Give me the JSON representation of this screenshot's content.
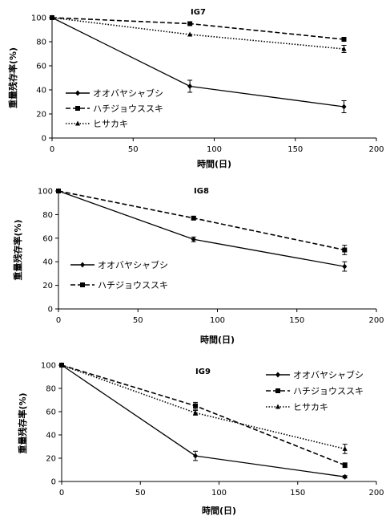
{
  "chart_data": [
    {
      "type": "line",
      "title": "IG7",
      "xlabel": "時間(日)",
      "ylabel": "重量残存率(%)",
      "xlim": [
        0,
        200
      ],
      "ylim": [
        0,
        100
      ],
      "xticks": [
        0,
        50,
        100,
        150,
        200
      ],
      "yticks": [
        0,
        20,
        40,
        60,
        80,
        100
      ],
      "grid": false,
      "legend_position": "bottom-left",
      "series": [
        {
          "name": "オオバヤシャブシ",
          "marker": "diamond",
          "line": "solid",
          "x": [
            0,
            85,
            180
          ],
          "y": [
            100,
            43,
            26
          ],
          "err": [
            0,
            5,
            5
          ]
        },
        {
          "name": "ハチジョウススキ",
          "marker": "square",
          "line": "dashed",
          "x": [
            0,
            85,
            180
          ],
          "y": [
            100,
            95,
            82
          ],
          "err": [
            0,
            0,
            0
          ]
        },
        {
          "name": "ヒサカキ",
          "marker": "triangle",
          "line": "dotted",
          "x": [
            0,
            85,
            180
          ],
          "y": [
            100,
            86,
            74
          ],
          "err": [
            0,
            0,
            3
          ]
        }
      ]
    },
    {
      "type": "line",
      "title": "IG8",
      "xlabel": "時間(日)",
      "ylabel": "重量残存率(%)",
      "xlim": [
        0,
        200
      ],
      "ylim": [
        0,
        100
      ],
      "xticks": [
        0,
        50,
        100,
        150,
        200
      ],
      "yticks": [
        0,
        20,
        40,
        60,
        80,
        100
      ],
      "grid": false,
      "legend_position": "bottom-left",
      "series": [
        {
          "name": "オオバヤシャブシ",
          "marker": "diamond",
          "line": "solid",
          "x": [
            0,
            85,
            180
          ],
          "y": [
            100,
            59,
            36
          ],
          "err": [
            0,
            2,
            4
          ]
        },
        {
          "name": "ハチジョウススキ",
          "marker": "square",
          "line": "dashed",
          "x": [
            0,
            85,
            180
          ],
          "y": [
            100,
            77,
            50
          ],
          "err": [
            0,
            1,
            4
          ]
        }
      ]
    },
    {
      "type": "line",
      "title": "IG9",
      "xlabel": "時間(日)",
      "ylabel": "重量残存率(%)",
      "xlim": [
        0,
        200
      ],
      "ylim": [
        0,
        100
      ],
      "xticks": [
        0,
        50,
        100,
        150,
        200
      ],
      "yticks": [
        0,
        20,
        40,
        60,
        80,
        100
      ],
      "grid": false,
      "legend_position": "top-right",
      "series": [
        {
          "name": "オオバヤシャブシ",
          "marker": "diamond",
          "line": "solid",
          "x": [
            0,
            85,
            180
          ],
          "y": [
            100,
            22,
            4
          ],
          "err": [
            0,
            4,
            1
          ]
        },
        {
          "name": "ハチジョウススキ",
          "marker": "square",
          "line": "dashed",
          "x": [
            0,
            85,
            180
          ],
          "y": [
            100,
            65,
            14
          ],
          "err": [
            0,
            3,
            2
          ]
        },
        {
          "name": "ヒサカキ",
          "marker": "triangle",
          "line": "dotted",
          "x": [
            0,
            85,
            180
          ],
          "y": [
            100,
            59,
            28
          ],
          "err": [
            0,
            2,
            4
          ]
        }
      ]
    }
  ]
}
